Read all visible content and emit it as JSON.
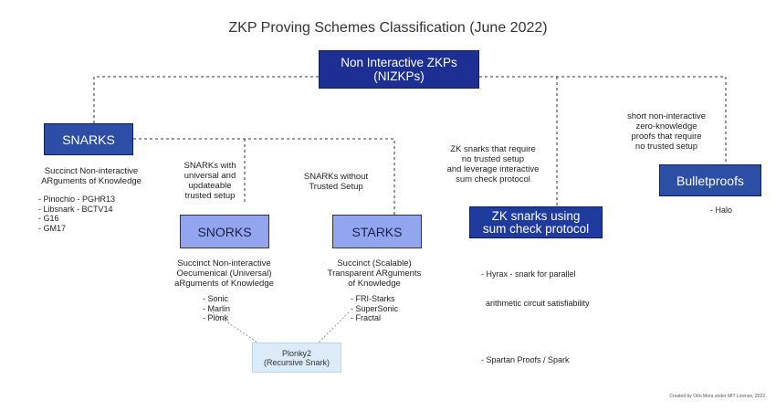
{
  "title": "ZKP Proving Schemes Classification (June 2022)",
  "root": {
    "line1": "Non Interactive ZKPs",
    "line2": "(NIZKPs)"
  },
  "snarks": {
    "label": "SNARKS",
    "desc_line1": "Succinct Non-interactive",
    "desc_line2": "ARguments of Knowledge",
    "items": [
      "- Pinochio - PGHR13",
      "- Libsnark - BCTV14",
      "- G16",
      "- GM17"
    ]
  },
  "snorks": {
    "label": "SNORKS",
    "note_lines": [
      "SNARKs with",
      "universal  and",
      "updateable",
      "trusted setup"
    ],
    "desc_lines": [
      "Succinct Non-interactive",
      "Oecumenical (Universal)",
      "aRguments of Knowledge"
    ],
    "items": [
      "- Sonic",
      "- Marlin",
      "- Plonk"
    ]
  },
  "starks": {
    "label": "STARKS",
    "note_lines": [
      "SNARKs without",
      "Trusted Setup"
    ],
    "desc_lines": [
      "Succinct (Scalable)",
      "Transparent ARguments",
      "of Knowledge"
    ],
    "items": [
      "- FRI-Starks",
      "- SuperSonic",
      "- Fractal"
    ]
  },
  "plonky2": {
    "line1": "Plonky2",
    "line2": "(Recursive Snark)"
  },
  "zk_sumcheck": {
    "line1": "ZK snarks using",
    "line2": "sum check protocol",
    "note_lines": [
      "ZK snarks that require",
      "no trusted setup",
      "and leverage interactive",
      "sum check protocol"
    ],
    "items": [
      "- Hyrax - snark for parallel",
      "  arithmetic circuit satisfiability",
      "",
      "- Spartan Proofs / Spark"
    ]
  },
  "bulletproofs": {
    "label": "Bulletproofs",
    "note_lines": [
      "short non-interactive",
      "zero-knowledge",
      "proofs that require",
      "no trusted setup"
    ],
    "items": [
      "- Halo"
    ]
  },
  "footer": "Created by Otto Mora under MIT License, 2022",
  "colors": {
    "root_fill": "#1d2f92",
    "dark_node_fill": "#2c4ea5",
    "light_node_fill": "#93a5ee",
    "plonky_fill": "#dbecf8",
    "connector": "#333333"
  }
}
